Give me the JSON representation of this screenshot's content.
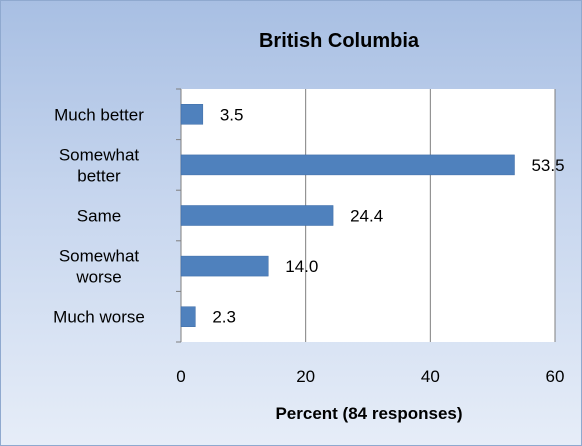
{
  "chart_data": {
    "type": "bar",
    "orientation": "horizontal",
    "title": "British Columbia",
    "xlabel": "Percent (84 responses)",
    "ylabel": "",
    "categories": [
      [
        "Much better"
      ],
      [
        "Somewhat",
        "better"
      ],
      [
        "Same"
      ],
      [
        "Somewhat",
        "worse"
      ],
      [
        "Much worse"
      ]
    ],
    "values": [
      3.5,
      53.5,
      24.4,
      14.0,
      2.3
    ],
    "value_labels": [
      "3.5",
      "53.5",
      "24.4",
      "14.0",
      "2.3"
    ],
    "xlim": [
      0,
      60
    ],
    "x_ticks": [
      0,
      20,
      40,
      60
    ],
    "grid": "vertical",
    "legend": "none",
    "colors": {
      "bar": "#4f81bd",
      "bar_edge": "#3a6aa5",
      "grid": "#7f7f7f",
      "plot_background": "#ffffff"
    }
  }
}
